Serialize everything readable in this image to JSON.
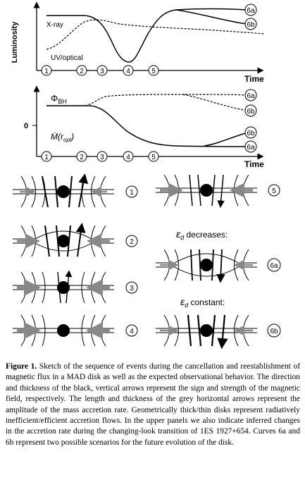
{
  "top_panel": {
    "ylabel": "Luminosity",
    "xlabel": "Time",
    "xray_label": "X-ray",
    "uv_label": "UV/optical",
    "ticks": [
      "1",
      "2",
      "3",
      "4",
      "5"
    ],
    "end_labels": [
      "6a",
      "6b"
    ]
  },
  "mid_panel": {
    "xlabel": "Time",
    "zero_label": "0",
    "phi_label": "Φ",
    "phi_sub": "BH",
    "mdot_label": "Ṁ(r",
    "mdot_sub": "opt",
    "mdot_close": ")",
    "ticks": [
      "1",
      "2",
      "3",
      "4",
      "5"
    ],
    "end_labels_top": [
      "6a",
      "6b"
    ],
    "end_labels_bottom": [
      "6b",
      "6a"
    ]
  },
  "sketches": {
    "labels": [
      "1",
      "2",
      "3",
      "4",
      "5",
      "6a",
      "6b"
    ],
    "ed_decreases_sym": "ε",
    "ed_sub": "d",
    "ed_decreases_text": " decreases:",
    "ed_constant_text": " constant:"
  },
  "caption": {
    "lead": "Figure 1.",
    "text": " Sketch of the sequence of events during the cancellation and reestablishment of magnetic flux in a MAD disk as well as the expected observational behavior. The direction and thickness of the black, vertical arrows represent the sign and strength of the magnetic field, respectively. The length and thickness of the grey horizontal arrows represent the amplitude of the mass accretion rate. Geometrically thick/thin disks represent radiatively inefficient/efficient accretion flows. In the upper panels we also indicate inferred changes in the accretion rate during the changing-look transition of 1ES 1927+654. Curves 6a and 6b represent two possible scenarios for the future evolution of the disk."
  }
}
